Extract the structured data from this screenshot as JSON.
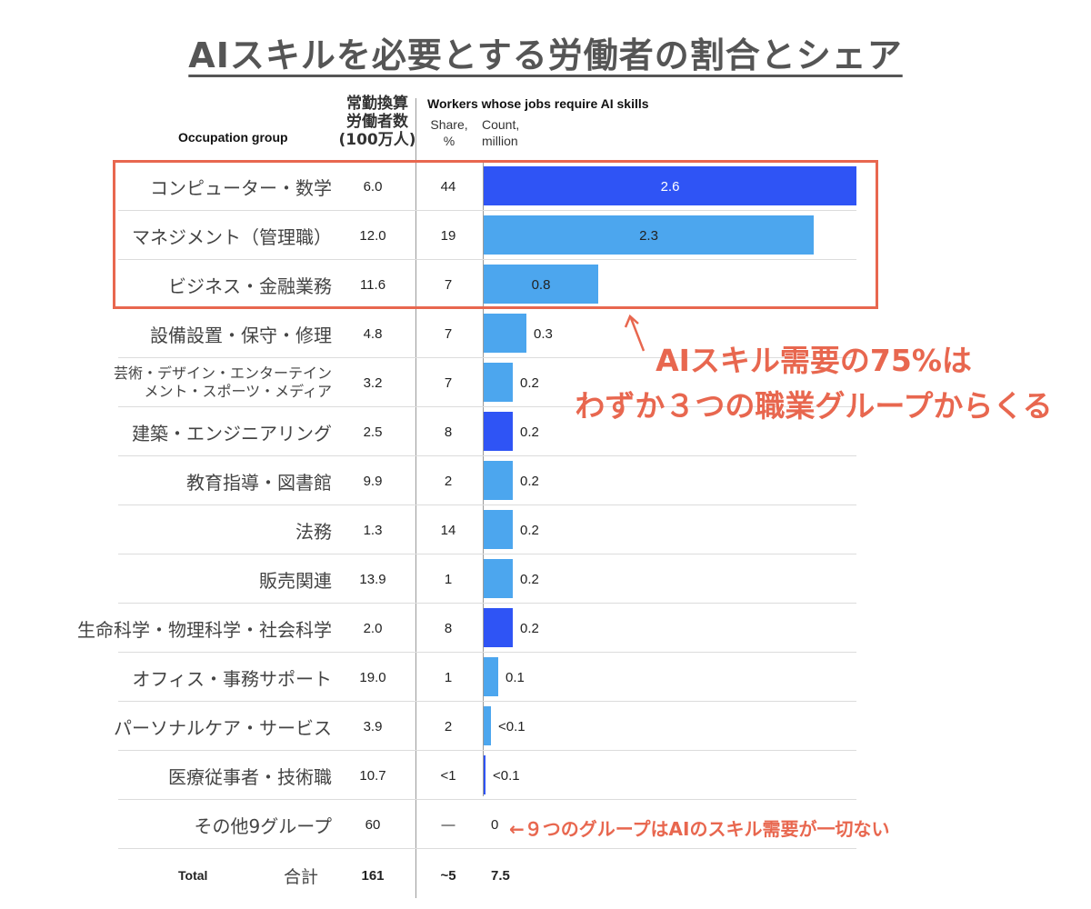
{
  "title": "AIスキルを必要とする労働者の割合とシェア",
  "headers": {
    "occupation": "Occupation group",
    "fte": [
      "常勤換算",
      "労働者数",
      "(100万人)"
    ],
    "workers": "Workers whose jobs require AI skills",
    "share": [
      "Share,",
      "%"
    ],
    "count": [
      "Count,",
      "million"
    ]
  },
  "colors": {
    "dark_bar": "#2f54f5",
    "light_bar": "#4ca6ee",
    "accent": "#e8674f"
  },
  "chart_data": {
    "type": "bar",
    "orientation": "horizontal",
    "xlim": [
      0,
      2.6
    ],
    "rows": [
      {
        "occupation": "コンピューター・数学",
        "fte": "6.0",
        "share": "44",
        "count": 2.6,
        "label": "2.6",
        "color": "dark"
      },
      {
        "occupation": "マネジメント（管理職）",
        "fte": "12.0",
        "share": "19",
        "count": 2.3,
        "label": "2.3",
        "color": "light"
      },
      {
        "occupation": "ビジネス・金融業務",
        "fte": "11.6",
        "share": "7",
        "count": 0.8,
        "label": "0.8",
        "color": "light"
      },
      {
        "occupation": "設備設置・保守・修理",
        "fte": "4.8",
        "share": "7",
        "count": 0.3,
        "label": "0.3",
        "color": "light"
      },
      {
        "occupation": "芸術・デザイン・エンターテイン\nメント・スポーツ・メディア",
        "fte": "3.2",
        "share": "7",
        "count": 0.2,
        "label": "0.2",
        "color": "light"
      },
      {
        "occupation": "建築・エンジニアリング",
        "fte": "2.5",
        "share": "8",
        "count": 0.2,
        "label": "0.2",
        "color": "dark"
      },
      {
        "occupation": "教育指導・図書館",
        "fte": "9.9",
        "share": "2",
        "count": 0.2,
        "label": "0.2",
        "color": "light"
      },
      {
        "occupation": "法務",
        "fte": "1.3",
        "share": "14",
        "count": 0.2,
        "label": "0.2",
        "color": "light"
      },
      {
        "occupation": "販売関連",
        "fte": "13.9",
        "share": "1",
        "count": 0.2,
        "label": "0.2",
        "color": "light"
      },
      {
        "occupation": "生命科学・物理科学・社会科学",
        "fte": "2.0",
        "share": "8",
        "count": 0.2,
        "label": "0.2",
        "color": "dark"
      },
      {
        "occupation": "オフィス・事務サポート",
        "fte": "19.0",
        "share": "1",
        "count": 0.1,
        "label": "0.1",
        "color": "light"
      },
      {
        "occupation": "パーソナルケア・サービス",
        "fte": "3.9",
        "share": "2",
        "count": 0.05,
        "label": "<0.1",
        "color": "light"
      },
      {
        "occupation": "医療従事者・技術職",
        "fte": "10.7",
        "share": "<1",
        "count": 0.01,
        "label": "<0.1",
        "color": "dark"
      },
      {
        "occupation": "その他9グループ",
        "fte": "60",
        "share": "—",
        "count": 0,
        "label": "0",
        "color": "light"
      }
    ],
    "total": {
      "label_en": "Total",
      "label_ja": "合計",
      "fte": "161",
      "share": "~5",
      "count": "7.5"
    }
  },
  "annotations": {
    "callout_line1": "AIスキル需要の75%は",
    "callout_line2": "わずか３つの職業グループからくる",
    "other_note": "←９つのグループはAIのスキル需要が一切ない"
  }
}
